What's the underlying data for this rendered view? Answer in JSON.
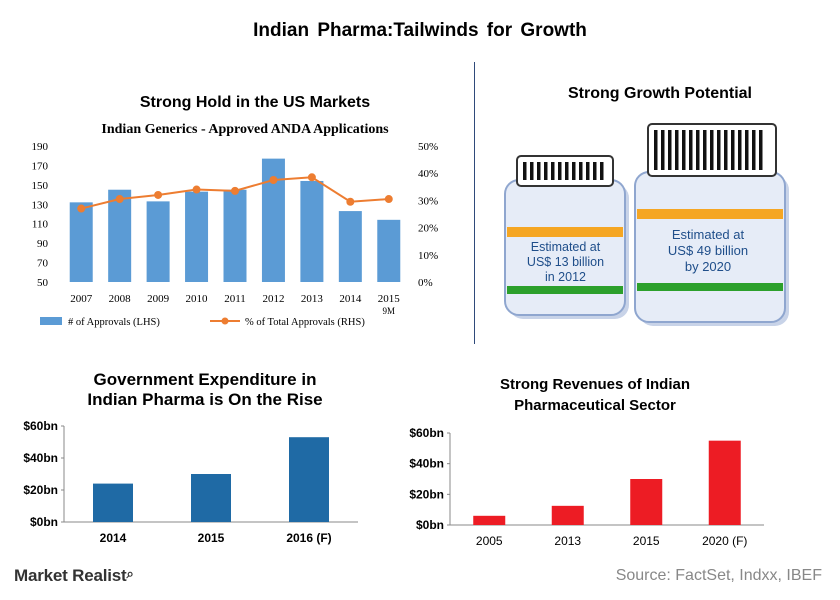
{
  "main_title": "Indian  Pharma:Tailwinds  for  Growth",
  "footer": {
    "logo": "Market Realist",
    "source": "Source: FactSet, Indxx, IBEF"
  },
  "growth_potential": {
    "title": "Strong Growth Potential",
    "jar_small_text": [
      "Estimated at",
      "US$ 13 billion",
      "in 2012"
    ],
    "jar_large_text": [
      "Estimated at",
      "US$ 49 billion",
      "by 2020"
    ],
    "colors": {
      "band_orange": "#f5a623",
      "band_green": "#2ca02c",
      "jar_body": "#e6ecf7",
      "jar_edge": "#8fa6cf"
    }
  },
  "chart_data": [
    {
      "id": "anda",
      "type": "bar",
      "section_title": "Strong Hold in the US Markets",
      "title": "Indian Generics - Approved ANDA Applications",
      "categories": [
        "2007",
        "2008",
        "2009",
        "2010",
        "2011",
        "2012",
        "2013",
        "2014",
        "2015"
      ],
      "category_sublabels": [
        "",
        "",
        "",
        "",
        "",
        "",
        "",
        "",
        "9M"
      ],
      "series": [
        {
          "name": "# of Approvals (LHS)",
          "type": "bar",
          "axis": "left",
          "color": "#5b9bd5",
          "values": [
            132,
            145,
            133,
            143,
            145,
            177,
            154,
            123,
            114
          ]
        },
        {
          "name": "% of Total Approvals (RHS)",
          "type": "line",
          "axis": "right",
          "color": "#ed7d31",
          "values": [
            27,
            30.5,
            32,
            34,
            33.5,
            37.5,
            38.5,
            29.5,
            30.5
          ]
        }
      ],
      "left_axis": {
        "ylim": [
          50,
          190
        ],
        "ticks": [
          "50",
          "70",
          "90",
          "110",
          "130",
          "150",
          "170",
          "190"
        ]
      },
      "right_axis": {
        "ylim": [
          0,
          50
        ],
        "ticks": [
          "0%",
          "10%",
          "20%",
          "30%",
          "40%",
          "50%"
        ]
      }
    },
    {
      "id": "govt",
      "type": "bar",
      "title": "Government Expenditure in Indian Pharma is On the Rise",
      "title_lines": [
        "Government Expenditure in",
        "Indian Pharma is On the Rise"
      ],
      "categories": [
        "2014",
        "2015",
        "2016 (F)"
      ],
      "values": [
        24,
        30,
        53
      ],
      "ylim": [
        0,
        60
      ],
      "ticks": [
        "$0bn",
        "$20bn",
        "$40bn",
        "$60bn"
      ],
      "color": "#1f6aa5"
    },
    {
      "id": "revenue",
      "type": "bar",
      "title": "Strong Revenues of Indian Pharmaceutical Sector",
      "title_lines": [
        "Strong Revenues of Indian",
        "Pharmaceutical Sector"
      ],
      "categories": [
        "2005",
        "2013",
        "2015",
        "2020 (F)"
      ],
      "values": [
        6,
        12.5,
        30,
        55
      ],
      "ylim": [
        0,
        60
      ],
      "ticks": [
        "$0bn",
        "$20bn",
        "$40bn",
        "$60bn"
      ],
      "color": "#ed1c24"
    }
  ]
}
